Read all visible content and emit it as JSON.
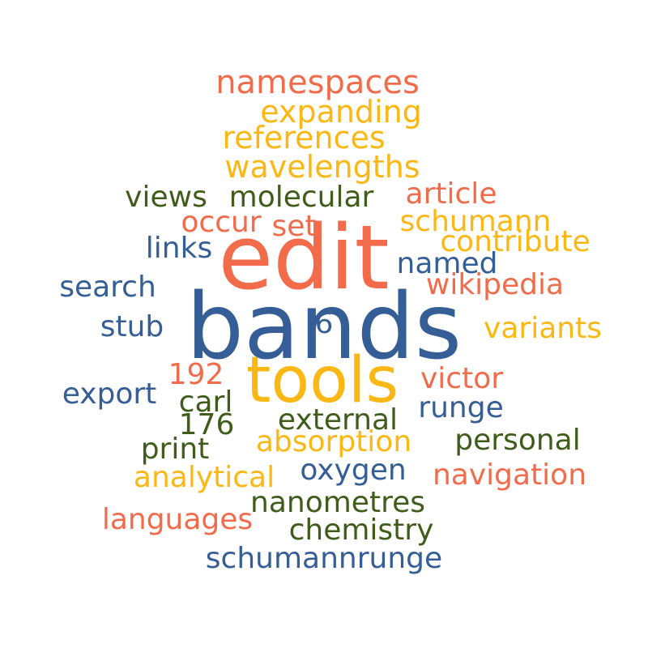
{
  "colors": {
    "red": "#f26b4b",
    "yellow": "#fbb713",
    "blue": "#355e96",
    "green": "#3f5c1b"
  },
  "words": [
    {
      "text": "namespaces",
      "color": "red"
    },
    {
      "text": "expanding",
      "color": "yellow"
    },
    {
      "text": "references",
      "color": "yellow"
    },
    {
      "text": "wavelengths",
      "color": "yellow"
    },
    {
      "text": "views",
      "color": "green"
    },
    {
      "text": "molecular",
      "color": "green"
    },
    {
      "text": "article",
      "color": "red"
    },
    {
      "text": "occur",
      "color": "red"
    },
    {
      "text": "set",
      "color": "red"
    },
    {
      "text": "schumann",
      "color": "yellow"
    },
    {
      "text": "contribute",
      "color": "yellow"
    },
    {
      "text": "links",
      "color": "blue"
    },
    {
      "text": "edit",
      "color": "red"
    },
    {
      "text": "named",
      "color": "blue"
    },
    {
      "text": "search",
      "color": "blue"
    },
    {
      "text": "wikipedia",
      "color": "red"
    },
    {
      "text": "bands",
      "color": "blue"
    },
    {
      "text": "6",
      "color": "blue"
    },
    {
      "text": "stub",
      "color": "blue"
    },
    {
      "text": "variants",
      "color": "yellow"
    },
    {
      "text": "192",
      "color": "red"
    },
    {
      "text": "tools",
      "color": "yellow"
    },
    {
      "text": "victor",
      "color": "red"
    },
    {
      "text": "export",
      "color": "blue"
    },
    {
      "text": "carl",
      "color": "green"
    },
    {
      "text": "runge",
      "color": "blue"
    },
    {
      "text": "176",
      "color": "green"
    },
    {
      "text": "external",
      "color": "green"
    },
    {
      "text": "print",
      "color": "green"
    },
    {
      "text": "absorption",
      "color": "yellow"
    },
    {
      "text": "personal",
      "color": "green"
    },
    {
      "text": "analytical",
      "color": "yellow"
    },
    {
      "text": "oxygen",
      "color": "blue"
    },
    {
      "text": "navigation",
      "color": "red"
    },
    {
      "text": "nanometres",
      "color": "green"
    },
    {
      "text": "languages",
      "color": "red"
    },
    {
      "text": "chemistry",
      "color": "green"
    },
    {
      "text": "schumannrunge",
      "color": "blue"
    }
  ]
}
